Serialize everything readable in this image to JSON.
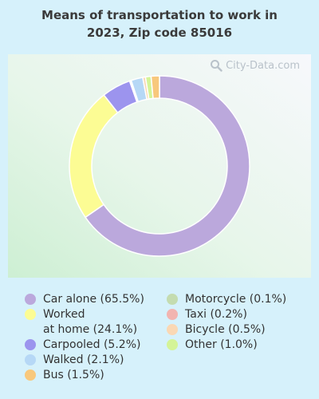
{
  "chart_data": {
    "type": "pie",
    "title": "Means of transportation to work in\n2023, Zip code 85016",
    "watermark": "City-Data.com",
    "slices": [
      {
        "label": "Car alone (65.5%)",
        "value": 65.5,
        "color": "#bba8dc"
      },
      {
        "label": "Worked\nat home (24.1%)",
        "value": 24.1,
        "color": "#fcfc94"
      },
      {
        "label": "Carpooled (5.2%)",
        "value": 5.2,
        "color": "#9c94ee"
      },
      {
        "label": "Motorcycle (0.1%)",
        "value": 0.1,
        "color": "#c4dcb0"
      },
      {
        "label": "Taxi (0.2%)",
        "value": 0.2,
        "color": "#f2b4b0"
      },
      {
        "label": "Walked (2.1%)",
        "value": 2.1,
        "color": "#b6d8f6"
      },
      {
        "label": "Bicycle (0.5%)",
        "value": 0.5,
        "color": "#fad8b4"
      },
      {
        "label": "Other (1.0%)",
        "value": 1.0,
        "color": "#d4f498"
      },
      {
        "label": "Bus (1.5%)",
        "value": 1.5,
        "color": "#f8c87c"
      }
    ],
    "legend": {
      "left": [
        "Car alone (65.5%)",
        "Worked\nat home (24.1%)",
        "Carpooled (5.2%)",
        "Walked (2.1%)",
        "Bus (1.5%)"
      ],
      "right": [
        "Motorcycle (0.1%)",
        "Taxi (0.2%)",
        "Bicycle (0.5%)",
        "Other (1.0%)"
      ]
    }
  }
}
